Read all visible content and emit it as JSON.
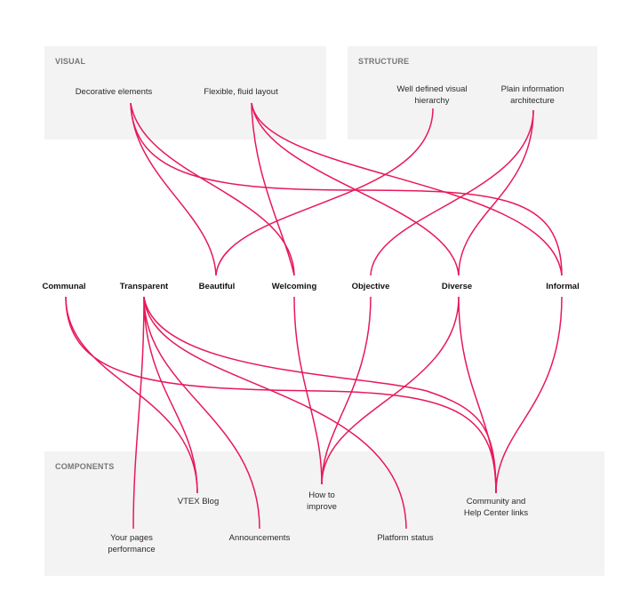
{
  "groups": {
    "visual": {
      "title": "VISUAL",
      "items": [
        "Decorative elements",
        "Flexible, fluid layout"
      ]
    },
    "structure": {
      "title": "STRUCTURE",
      "items": [
        "Well defined visual hierarchy",
        "Plain information architecture"
      ]
    },
    "components": {
      "title": "COMPONENTS",
      "items": [
        "VTEX Blog",
        "How to improve",
        "Community and Help Center links",
        "Your pages performance",
        "Announcements",
        "Platform status"
      ]
    }
  },
  "values": [
    "Communal",
    "Transparent",
    "Beautiful",
    "Welcoming",
    "Objective",
    "Diverse",
    "Informal"
  ],
  "colors": {
    "link": "#e8185a",
    "panel": "#f3f3f3",
    "panel_title": "#767676"
  }
}
